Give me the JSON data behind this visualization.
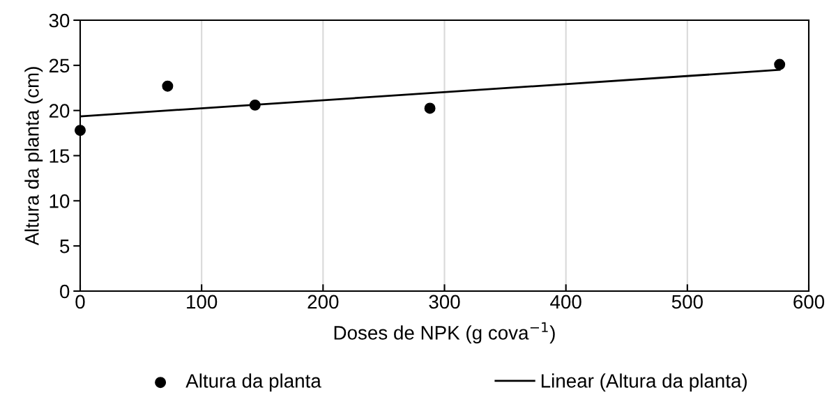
{
  "chart_data": {
    "type": "scatter",
    "xlabel": "Doses de NPK (g cova$^{−1}$)",
    "ylabel": "Altura da planta (cm)",
    "series": [
      {
        "name": "Altura da planta",
        "color": "#000000",
        "marker": "circle",
        "x": [
          0,
          72,
          144,
          288,
          576
        ],
        "values": [
          17.8,
          22.7,
          20.6,
          20.25,
          25.1
        ]
      },
      {
        "name": "Linear (Altura da planta)",
        "type": "line",
        "color": "#000000",
        "marker": "none",
        "line_style": "solid",
        "x": [
          0,
          576
        ],
        "values": [
          19.35,
          24.5
        ]
      }
    ],
    "xlim": [
      0,
      600
    ],
    "xticks": [
      0,
      100,
      200,
      300,
      400,
      500,
      600
    ],
    "ylim": [
      0,
      30
    ],
    "yticks": [
      0,
      5,
      10,
      15,
      20,
      25,
      30
    ],
    "grid": "x",
    "legend": "bottom"
  }
}
